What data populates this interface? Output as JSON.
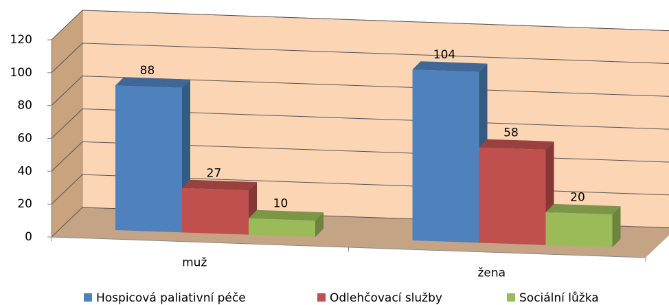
{
  "chart_data": {
    "type": "bar3d",
    "categories": [
      "muž",
      "žena"
    ],
    "series": [
      {
        "name": "Hospicová paliativní péče",
        "color": "#4f81bd",
        "values": [
          88,
          104
        ]
      },
      {
        "name": "Odlehčovací služby",
        "color": "#c0504d",
        "values": [
          27,
          58
        ]
      },
      {
        "name": "Sociální lůžka",
        "color": "#9bbb59",
        "values": [
          10,
          20
        ]
      }
    ],
    "ylim": [
      0,
      120
    ],
    "yticks": [
      0,
      20,
      40,
      60,
      80,
      100,
      120
    ],
    "grid": true,
    "legend": "bottom"
  }
}
